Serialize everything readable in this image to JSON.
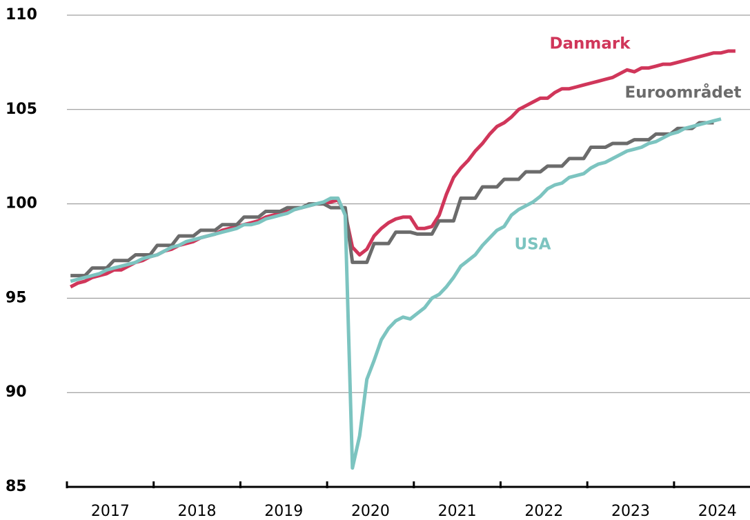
{
  "chart_data": {
    "type": "line",
    "categories": [
      null,
      null,
      null,
      null,
      null,
      null,
      "2017",
      null,
      null,
      null,
      null,
      null,
      null,
      null,
      null,
      null,
      null,
      null,
      "2018",
      null,
      null,
      null,
      null,
      null,
      null,
      null,
      null,
      null,
      null,
      null,
      "2019",
      null,
      null,
      null,
      null,
      null,
      null,
      null,
      null,
      null,
      null,
      null,
      "2020",
      null,
      null,
      null,
      null,
      null,
      null,
      null,
      null,
      null,
      null,
      null,
      "2021",
      null,
      null,
      null,
      null,
      null,
      null,
      null,
      null,
      null,
      null,
      null,
      "2022",
      null,
      null,
      null,
      null,
      null,
      null,
      null,
      null,
      null,
      null,
      null,
      "2023",
      null,
      null,
      null,
      null,
      null,
      null,
      null,
      null,
      null,
      null,
      null,
      "2024",
      null,
      null
    ],
    "series": [
      {
        "name": "Danmark",
        "color": "#d0365a",
        "values": [
          95.6,
          95.8,
          95.9,
          96.1,
          96.2,
          96.3,
          96.5,
          96.5,
          96.7,
          96.9,
          97.0,
          97.2,
          97.3,
          97.5,
          97.6,
          97.8,
          97.9,
          98.0,
          98.2,
          98.3,
          98.4,
          98.6,
          98.7,
          98.8,
          98.9,
          99.0,
          99.1,
          99.3,
          99.4,
          99.5,
          99.6,
          99.7,
          99.8,
          99.9,
          100.0,
          100.0,
          100.1,
          100.2,
          99.5,
          97.7,
          97.3,
          97.6,
          98.3,
          98.7,
          99.0,
          99.2,
          99.3,
          99.3,
          98.7,
          98.7,
          98.8,
          99.4,
          100.5,
          101.4,
          101.9,
          102.3,
          102.8,
          103.2,
          103.7,
          104.1,
          104.3,
          104.6,
          105.0,
          105.2,
          105.4,
          105.6,
          105.6,
          105.9,
          106.1,
          106.1,
          106.2,
          106.3,
          106.4,
          106.5,
          106.6,
          106.7,
          106.9,
          107.1,
          107.0,
          107.2,
          107.2,
          107.3,
          107.4,
          107.4,
          107.5,
          107.6,
          107.7,
          107.8,
          107.9,
          108.0,
          108.0,
          108.1,
          108.1
        ]
      },
      {
        "name": "Euroområdet",
        "color": "#6b6b6b",
        "values": [
          96.2,
          96.2,
          96.2,
          96.6,
          96.6,
          96.6,
          97.0,
          97.0,
          97.0,
          97.3,
          97.3,
          97.3,
          97.8,
          97.8,
          97.8,
          98.3,
          98.3,
          98.3,
          98.6,
          98.6,
          98.6,
          98.9,
          98.9,
          98.9,
          99.3,
          99.3,
          99.3,
          99.6,
          99.6,
          99.6,
          99.8,
          99.8,
          99.8,
          100.0,
          100.0,
          100.0,
          99.8,
          99.8,
          99.8,
          96.9,
          96.9,
          96.9,
          97.9,
          97.9,
          97.9,
          98.5,
          98.5,
          98.5,
          98.4,
          98.4,
          98.4,
          99.1,
          99.1,
          99.1,
          100.3,
          100.3,
          100.3,
          100.9,
          100.9,
          100.9,
          101.3,
          101.3,
          101.3,
          101.7,
          101.7,
          101.7,
          102.0,
          102.0,
          102.0,
          102.4,
          102.4,
          102.4,
          103.0,
          103.0,
          103.0,
          103.2,
          103.2,
          103.2,
          103.4,
          103.4,
          103.4,
          103.7,
          103.7,
          103.7,
          104.0,
          104.0,
          104.0,
          104.3,
          104.3,
          104.3,
          null,
          null,
          null
        ]
      },
      {
        "name": "USA",
        "color": "#7cc4c0",
        "values": [
          95.9,
          96.0,
          96.1,
          96.2,
          96.3,
          96.5,
          96.6,
          96.7,
          96.8,
          96.9,
          97.1,
          97.2,
          97.3,
          97.5,
          97.7,
          97.8,
          98.0,
          98.1,
          98.2,
          98.3,
          98.4,
          98.5,
          98.6,
          98.7,
          98.9,
          98.9,
          99.0,
          99.2,
          99.3,
          99.4,
          99.5,
          99.7,
          99.8,
          99.9,
          100.0,
          100.1,
          100.3,
          100.3,
          99.4,
          86.0,
          87.7,
          90.7,
          91.7,
          92.8,
          93.4,
          93.8,
          94.0,
          93.9,
          94.2,
          94.5,
          95.0,
          95.2,
          95.6,
          96.1,
          96.7,
          97.0,
          97.3,
          97.8,
          98.2,
          98.6,
          98.8,
          99.4,
          99.7,
          99.9,
          100.1,
          100.4,
          100.8,
          101.0,
          101.1,
          101.4,
          101.5,
          101.6,
          101.9,
          102.1,
          102.2,
          102.4,
          102.6,
          102.8,
          102.9,
          103.0,
          103.2,
          103.3,
          103.5,
          103.7,
          103.8,
          104.0,
          104.1,
          104.2,
          104.3,
          104.4,
          104.5,
          null,
          null
        ]
      }
    ],
    "ylim": [
      85,
      110
    ],
    "yticks": [
      85,
      90,
      95,
      100,
      105,
      110
    ],
    "grid": true
  }
}
